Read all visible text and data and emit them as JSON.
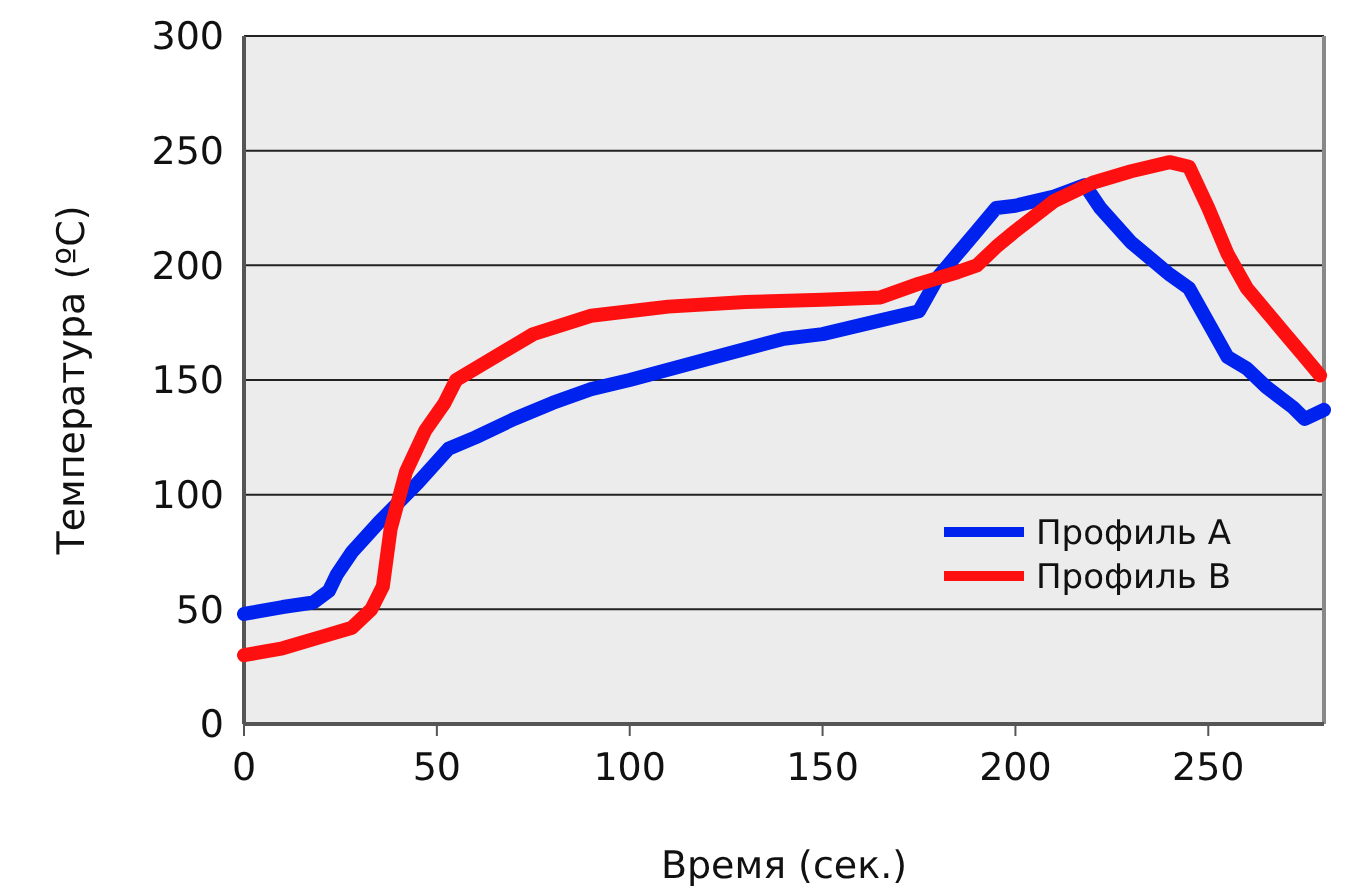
{
  "chart_data": {
    "type": "line",
    "xlabel": "Время (сек.)",
    "ylabel": "Температура (ºC)",
    "xlim": [
      0,
      280
    ],
    "xticks": [
      0,
      50,
      100,
      150,
      200,
      250
    ],
    "ylim": [
      0,
      300
    ],
    "yticks": [
      0,
      50,
      100,
      150,
      200,
      250,
      300
    ],
    "grid": "y",
    "legend": "bottom right",
    "marker": "none",
    "line_style": "solid",
    "series": [
      {
        "name": "Профиль А",
        "color": "#0022ee",
        "x": [
          0,
          10,
          18,
          22,
          24,
          28,
          35,
          45,
          53,
          60,
          70,
          80,
          90,
          100,
          120,
          140,
          150,
          165,
          175,
          180,
          185,
          190,
          195,
          200,
          210,
          218,
          222,
          230,
          240,
          245,
          250,
          255,
          260,
          265,
          272,
          275,
          280
        ],
        "values": [
          48,
          51,
          53,
          58,
          65,
          75,
          88,
          105,
          120,
          125,
          133,
          140,
          146,
          150,
          159,
          168,
          170,
          176,
          180,
          195,
          205,
          215,
          225,
          226,
          230,
          235,
          225,
          210,
          196,
          190,
          175,
          160,
          155,
          147,
          138,
          133,
          137
        ]
      },
      {
        "name": "Профиль В",
        "color": "#ff1010",
        "x": [
          0,
          10,
          20,
          28,
          33,
          36,
          38,
          42,
          47,
          52,
          55,
          65,
          75,
          90,
          110,
          130,
          150,
          165,
          175,
          185,
          190,
          195,
          200,
          210,
          220,
          230,
          240,
          245,
          250,
          255,
          260,
          265,
          270,
          275,
          279
        ],
        "values": [
          30,
          33,
          38,
          42,
          50,
          60,
          85,
          110,
          128,
          140,
          150,
          160,
          170,
          178,
          182,
          184,
          185,
          186,
          192,
          197,
          200,
          208,
          215,
          228,
          236,
          241,
          245,
          243,
          225,
          205,
          190,
          180,
          170,
          160,
          152
        ]
      }
    ]
  }
}
